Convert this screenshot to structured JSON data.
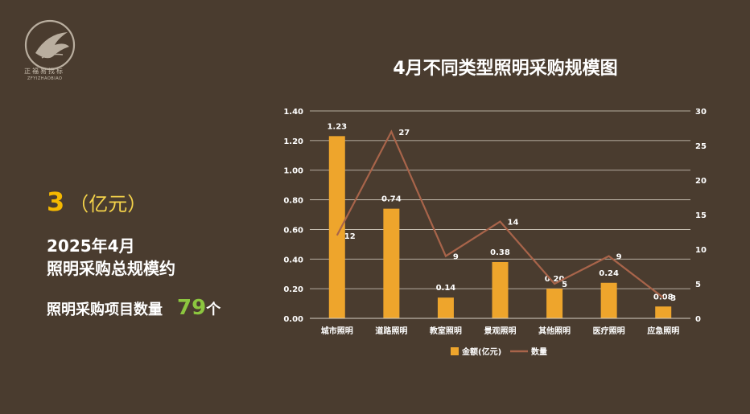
{
  "logo": {
    "name": "正福易找标",
    "sub": "ZFYIZHAOBIAO"
  },
  "summary": {
    "amount_value": "3",
    "amount_unit": "（亿元）",
    "period": "2025年4月",
    "amount_label": "照明采购总规模约",
    "count_label": "照明采购项目数量",
    "count_value": "79",
    "count_unit": "个"
  },
  "colors": {
    "bar": "#eea52c",
    "line": "#a8644a",
    "accent_value": "#f5b800",
    "accent_count": "#8cc63f"
  },
  "chart_data": {
    "type": "bar",
    "title": "4月不同类型照明采购规模图",
    "categories": [
      "城市照明",
      "道路照明",
      "教室照明",
      "景观照明",
      "其他照明",
      "医疗照明",
      "应急照明"
    ],
    "series": [
      {
        "name": "金额(亿元)",
        "type": "bar",
        "axis": "left",
        "values": [
          1.23,
          0.74,
          0.14,
          0.38,
          0.2,
          0.24,
          0.08
        ],
        "labels": [
          "1.23",
          "0.74",
          "0.14",
          "0.38",
          "0.20",
          "0.24",
          "0.08"
        ]
      },
      {
        "name": "数量",
        "type": "line",
        "axis": "right",
        "values": [
          12,
          27,
          9,
          14,
          5,
          9,
          3
        ],
        "labels": [
          "12",
          "27",
          "9",
          "14",
          "5",
          "9",
          "3"
        ]
      }
    ],
    "ylim_left": [
      0,
      1.4
    ],
    "yticks_left": [
      "0.00",
      "0.20",
      "0.40",
      "0.60",
      "0.80",
      "1.00",
      "1.20",
      "1.40"
    ],
    "ylim_right": [
      0,
      30
    ],
    "yticks_right": [
      "0",
      "5",
      "10",
      "15",
      "20",
      "25",
      "30"
    ],
    "grid": true,
    "legend_position": "bottom"
  }
}
